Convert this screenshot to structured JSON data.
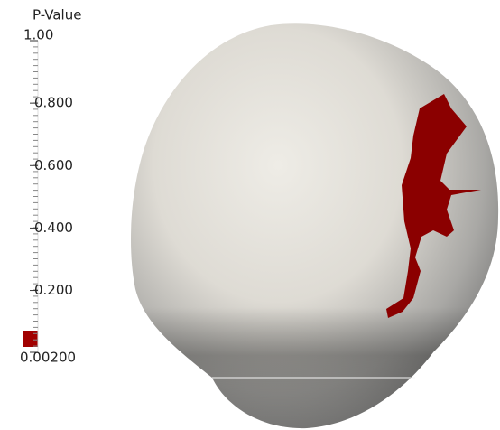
{
  "legend": {
    "title": "P-Value",
    "ticks": [
      {
        "value": 1,
        "label": "1.00"
      },
      {
        "value": 0.8,
        "label": "0.800"
      },
      {
        "value": 0.6,
        "label": "0.600"
      },
      {
        "value": 0.4,
        "label": "0.400"
      },
      {
        "value": 0.2,
        "label": "0.200"
      },
      {
        "value": 0.002,
        "label": "0.00200"
      }
    ],
    "range": [
      0.002,
      1
    ]
  }
}
